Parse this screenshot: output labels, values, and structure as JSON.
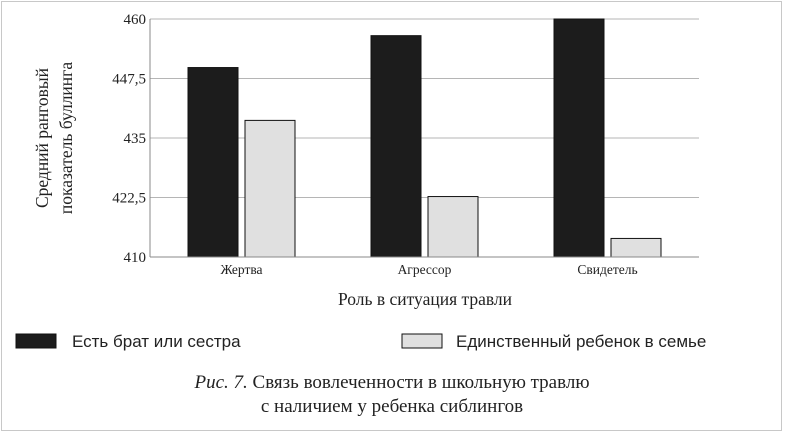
{
  "chart_data": {
    "type": "bar",
    "categories": [
      "Жертва",
      "Агрессор",
      "Свидетель"
    ],
    "series": [
      {
        "name": "Есть брат или сестра",
        "values": [
          449.8,
          456.5,
          460
        ],
        "color": "#1c1c1c"
      },
      {
        "name": "Единственный ребенок в семье",
        "values": [
          438.7,
          422.7,
          413.9
        ],
        "color": "#e0e0e0"
      }
    ],
    "ylim": [
      410,
      460
    ],
    "yticks": [
      "460",
      "447,5",
      "435",
      "422,5",
      "410"
    ],
    "ytick_values": [
      460,
      447.5,
      435,
      422.5,
      410
    ],
    "xlabel": "Роль в ситуация травли",
    "ylabel_lines": [
      "Средний ранговый",
      "показатель буллинга"
    ],
    "grid": true,
    "legend_position": "bottom"
  },
  "caption": {
    "prefix": "Рис. 7.",
    "line1": " Связь вовлеченности в школьную травлю",
    "line2": "с наличием у ребенка сиблингов"
  }
}
